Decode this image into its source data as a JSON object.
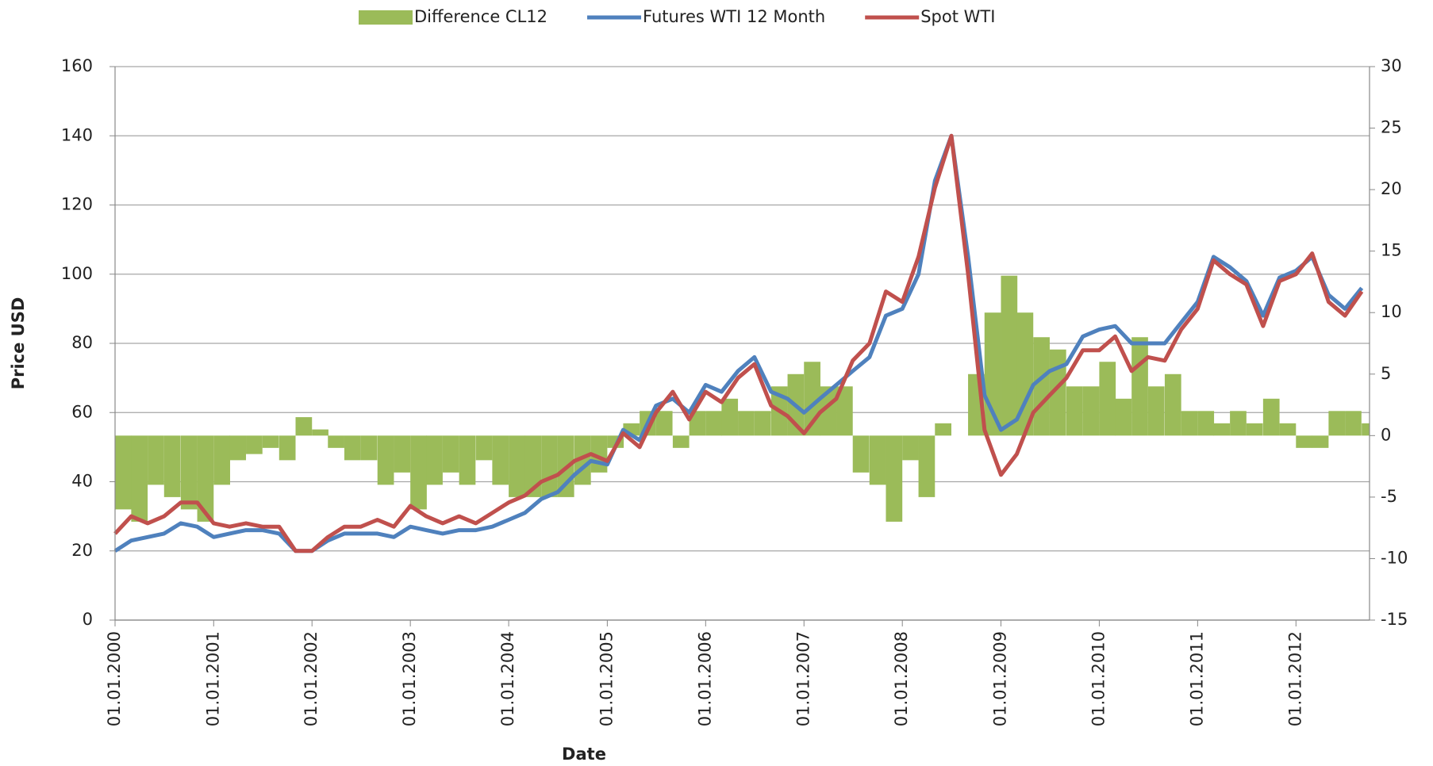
{
  "chart_data": {
    "type": "line",
    "x_label": "Date",
    "y_label": "Price USD",
    "x": [
      "2000-01-01",
      "2000-03-01",
      "2000-05-01",
      "2000-07-01",
      "2000-09-01",
      "2000-11-01",
      "2001-01-01",
      "2001-03-01",
      "2001-05-01",
      "2001-07-01",
      "2001-09-01",
      "2001-11-01",
      "2002-01-01",
      "2002-03-01",
      "2002-05-01",
      "2002-07-01",
      "2002-09-01",
      "2002-11-01",
      "2003-01-01",
      "2003-03-01",
      "2003-05-01",
      "2003-07-01",
      "2003-09-01",
      "2003-11-01",
      "2004-01-01",
      "2004-03-01",
      "2004-05-01",
      "2004-07-01",
      "2004-09-01",
      "2004-11-01",
      "2005-01-01",
      "2005-03-01",
      "2005-05-01",
      "2005-07-01",
      "2005-09-01",
      "2005-11-01",
      "2006-01-01",
      "2006-03-01",
      "2006-05-01",
      "2006-07-01",
      "2006-09-01",
      "2006-11-01",
      "2007-01-01",
      "2007-03-01",
      "2007-05-01",
      "2007-07-01",
      "2007-09-01",
      "2007-11-01",
      "2008-01-01",
      "2008-03-01",
      "2008-05-01",
      "2008-07-01",
      "2008-09-01",
      "2008-11-01",
      "2009-01-01",
      "2009-03-01",
      "2009-05-01",
      "2009-07-01",
      "2009-09-01",
      "2009-11-01",
      "2010-01-01",
      "2010-03-01",
      "2010-05-01",
      "2010-07-01",
      "2010-09-01",
      "2010-11-01",
      "2011-01-01",
      "2011-03-01",
      "2011-05-01",
      "2011-07-01",
      "2011-09-01",
      "2011-11-01",
      "2012-01-01",
      "2012-03-01",
      "2012-05-01",
      "2012-07-01",
      "2012-09-01"
    ],
    "series": [
      {
        "name": "Difference CL12",
        "type": "bar",
        "axis": "y2",
        "color": "#9bbb59",
        "values": [
          -6,
          -7,
          -4,
          -5,
          -6,
          -7,
          -4,
          -2,
          -1.5,
          -1,
          -2,
          1.5,
          0.5,
          -1,
          -2,
          -2,
          -4,
          -3,
          -6,
          -4,
          -3,
          -4,
          -2,
          -4,
          -5,
          -5,
          -5,
          -5,
          -4,
          -3,
          -1,
          1,
          2,
          2,
          -1,
          2,
          2,
          3,
          2,
          2,
          4,
          5,
          6,
          4,
          4,
          -3,
          -4,
          -7,
          -2,
          -5,
          1,
          0,
          5,
          10,
          13,
          10,
          8,
          7,
          4,
          4,
          6,
          3,
          8,
          4,
          5,
          2,
          2,
          1,
          2,
          1,
          3,
          1,
          -1,
          -1,
          2,
          2,
          1
        ]
      },
      {
        "name": "Futures WTI 12 Month",
        "type": "line",
        "color": "#4f81bd",
        "values": [
          20,
          23,
          24,
          25,
          28,
          27,
          24,
          25,
          26,
          26,
          25,
          20,
          20,
          23,
          25,
          25,
          25,
          24,
          27,
          26,
          25,
          26,
          26,
          27,
          29,
          31,
          35,
          37,
          42,
          46,
          45,
          55,
          52,
          62,
          64,
          60,
          68,
          66,
          72,
          76,
          66,
          64,
          60,
          64,
          68,
          72,
          76,
          88,
          90,
          100,
          127,
          140,
          105,
          65,
          55,
          58,
          68,
          72,
          74,
          82,
          84,
          85,
          80,
          80,
          80,
          86,
          92,
          105,
          102,
          98,
          88,
          99,
          101,
          105,
          94,
          90,
          96
        ]
      },
      {
        "name": "Spot WTI",
        "type": "line",
        "color": "#c0504d",
        "values": [
          25,
          30,
          28,
          30,
          34,
          34,
          28,
          27,
          28,
          27,
          27,
          20,
          20,
          24,
          27,
          27,
          29,
          27,
          33,
          30,
          28,
          30,
          28,
          31,
          34,
          36,
          40,
          42,
          46,
          48,
          46,
          54,
          50,
          60,
          66,
          58,
          66,
          63,
          70,
          74,
          62,
          59,
          54,
          60,
          64,
          75,
          80,
          95,
          92,
          105,
          125,
          140,
          100,
          55,
          42,
          48,
          60,
          65,
          70,
          78,
          78,
          82,
          72,
          76,
          75,
          84,
          90,
          104,
          100,
          97,
          85,
          98,
          100,
          106,
          92,
          88,
          95
        ]
      }
    ],
    "xlim": [
      "2000-01-01",
      "2012-09-30"
    ],
    "xticks": [
      {
        "value": "2000-01-01",
        "label": "01.01.2000"
      },
      {
        "value": "2001-01-01",
        "label": "01.01.2001"
      },
      {
        "value": "2002-01-01",
        "label": "01.01.2002"
      },
      {
        "value": "2003-01-01",
        "label": "01.01.2003"
      },
      {
        "value": "2004-01-01",
        "label": "01.01.2004"
      },
      {
        "value": "2005-01-01",
        "label": "01.01.2005"
      },
      {
        "value": "2006-01-01",
        "label": "01.01.2006"
      },
      {
        "value": "2007-01-01",
        "label": "01.01.2007"
      },
      {
        "value": "2008-01-01",
        "label": "01.01.2008"
      },
      {
        "value": "2009-01-01",
        "label": "01.01.2009"
      },
      {
        "value": "2010-01-01",
        "label": "01.01.2010"
      },
      {
        "value": "2011-01-01",
        "label": "01.01.2011"
      },
      {
        "value": "2012-01-01",
        "label": "01.01.2012"
      }
    ],
    "ylim": [
      0,
      160
    ],
    "yticks": [
      0,
      20,
      40,
      60,
      80,
      100,
      120,
      140,
      160
    ],
    "y2lim": [
      -15,
      30
    ],
    "y2ticks": [
      -15,
      -10,
      -5,
      0,
      5,
      10,
      15,
      20,
      25,
      30
    ],
    "grid": true,
    "legend": "top"
  }
}
